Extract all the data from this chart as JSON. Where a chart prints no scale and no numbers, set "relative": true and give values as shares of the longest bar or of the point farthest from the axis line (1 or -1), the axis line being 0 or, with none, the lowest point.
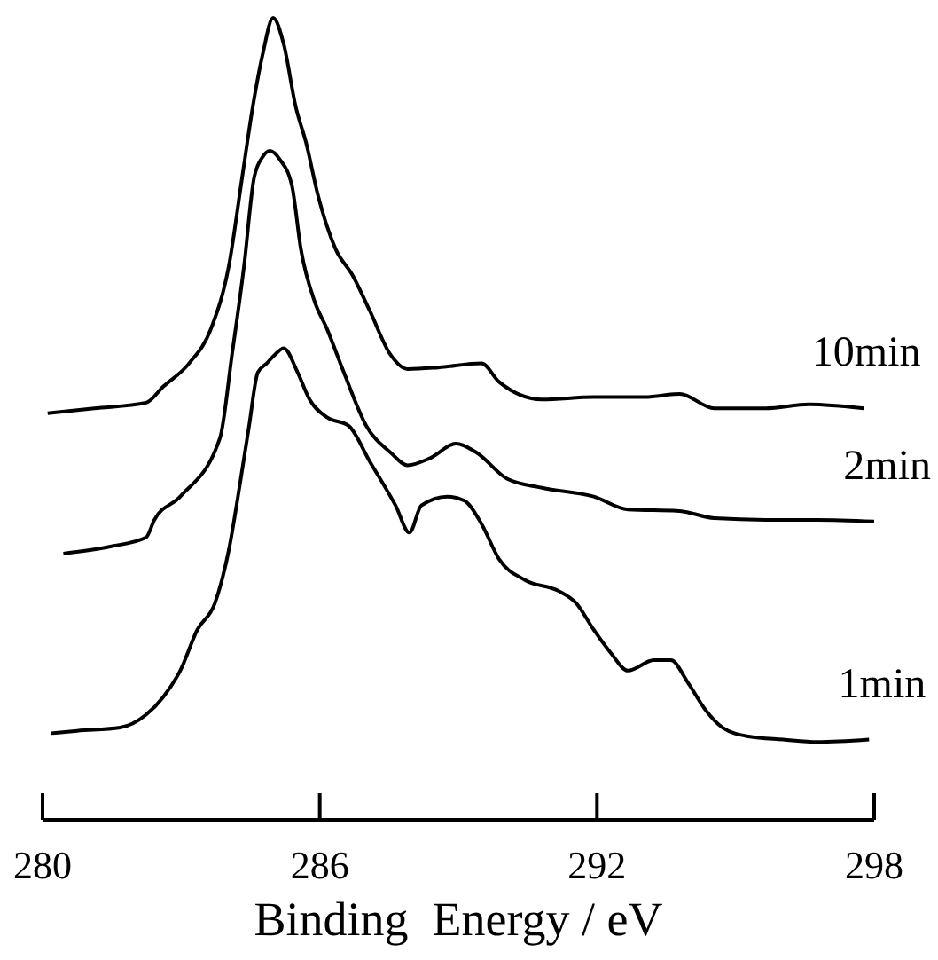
{
  "chart_data": {
    "type": "line",
    "xlabel": "Binding  Energy / eV",
    "relative": true,
    "xlim": [
      280,
      298
    ],
    "xticks": [
      280,
      286,
      292,
      298
    ],
    "grid": false,
    "marker": "none",
    "line_style": "solid",
    "series": [
      {
        "name": "10min",
        "color": "#000000",
        "x": [
          280.11,
          281.12,
          282.24,
          282.61,
          283.17,
          283.65,
          284.03,
          284.32,
          284.55,
          284.77,
          284.99,
          285.22,
          285.48,
          285.7,
          285.96,
          286.34,
          286.71,
          287.08,
          287.53,
          287.9,
          288.57,
          289.5,
          289.88,
          290.81,
          291.93,
          293.04,
          293.79,
          294.54,
          295.65,
          296.59,
          297.78
        ],
        "values": [
          0.507,
          0.513,
          0.52,
          0.54,
          0.569,
          0.613,
          0.69,
          0.801,
          0.889,
          0.956,
          1.0,
          0.967,
          0.889,
          0.845,
          0.779,
          0.712,
          0.679,
          0.635,
          0.58,
          0.562,
          0.564,
          0.569,
          0.546,
          0.524,
          0.527,
          0.527,
          0.531,
          0.513,
          0.513,
          0.518,
          0.513
        ]
      },
      {
        "name": "2min",
        "color": "#000000",
        "x": [
          280.45,
          281.49,
          282.24,
          282.42,
          282.98,
          283.84,
          284.1,
          284.36,
          284.58,
          284.77,
          284.92,
          285.14,
          285.4,
          285.59,
          285.89,
          286.15,
          286.52,
          287.01,
          287.53,
          287.9,
          288.39,
          288.95,
          289.39,
          290.06,
          290.81,
          291.93,
          292.67,
          293.79,
          294.54,
          295.65,
          296.77,
          298.0
        ],
        "values": [
          0.332,
          0.341,
          0.352,
          0.374,
          0.403,
          0.476,
          0.58,
          0.69,
          0.801,
          0.827,
          0.834,
          0.823,
          0.79,
          0.712,
          0.646,
          0.613,
          0.558,
          0.491,
          0.458,
          0.442,
          0.451,
          0.469,
          0.458,
          0.425,
          0.414,
          0.403,
          0.387,
          0.385,
          0.376,
          0.374,
          0.374,
          0.372
        ]
      },
      {
        "name": "1min",
        "color": "#000000",
        "x": [
          280.19,
          280.75,
          281.68,
          282.24,
          282.61,
          282.98,
          283.35,
          283.73,
          284.03,
          284.29,
          284.47,
          284.66,
          284.85,
          285.03,
          285.22,
          285.52,
          285.78,
          286.15,
          286.63,
          287.08,
          287.64,
          287.94,
          288.2,
          288.76,
          289.13,
          289.5,
          289.88,
          290.44,
          291.18,
          291.55,
          291.93,
          292.3,
          292.67,
          293.23,
          293.6,
          293.98,
          294.35,
          294.72,
          295.28,
          296.03,
          296.77,
          297.89
        ],
        "values": [
          0.108,
          0.111,
          0.115,
          0.131,
          0.153,
          0.186,
          0.237,
          0.27,
          0.336,
          0.425,
          0.491,
          0.558,
          0.569,
          0.58,
          0.588,
          0.558,
          0.524,
          0.502,
          0.491,
          0.447,
          0.392,
          0.358,
          0.392,
          0.403,
          0.398,
          0.369,
          0.325,
          0.299,
          0.285,
          0.27,
          0.237,
          0.208,
          0.186,
          0.199,
          0.199,
          0.17,
          0.137,
          0.115,
          0.104,
          0.1,
          0.097,
          0.1
        ]
      }
    ]
  }
}
